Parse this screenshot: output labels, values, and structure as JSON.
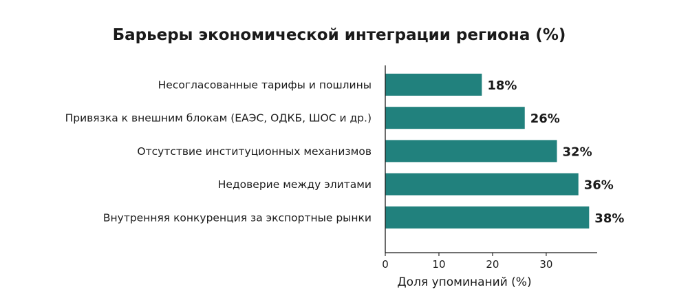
{
  "chart_data": {
    "type": "bar",
    "orientation": "horizontal",
    "title": "Барьеры экономической интеграции региона (%)",
    "xlabel": "Доля упоминаний (%)",
    "ylabel": "",
    "categories": [
      "Несогласованные тарифы и пошлины",
      "Привязка к внешним блокам (ЕАЭС, ОДКБ, ШОС и др.)",
      "Отсутствие институционных механизмов",
      "Недоверие между элитами",
      "Внутренняя конкуренция за экспортные рынки"
    ],
    "values": [
      18,
      26,
      32,
      36,
      38
    ],
    "value_labels": [
      "18%",
      "26%",
      "32%",
      "36%",
      "38%"
    ],
    "xlim": [
      0,
      39.5
    ],
    "xticks": [
      0,
      10,
      20,
      30
    ],
    "xtick_labels": [
      "0",
      "10",
      "20",
      "30"
    ],
    "grid": false,
    "legend": "none",
    "bar_color": "#21817d"
  }
}
